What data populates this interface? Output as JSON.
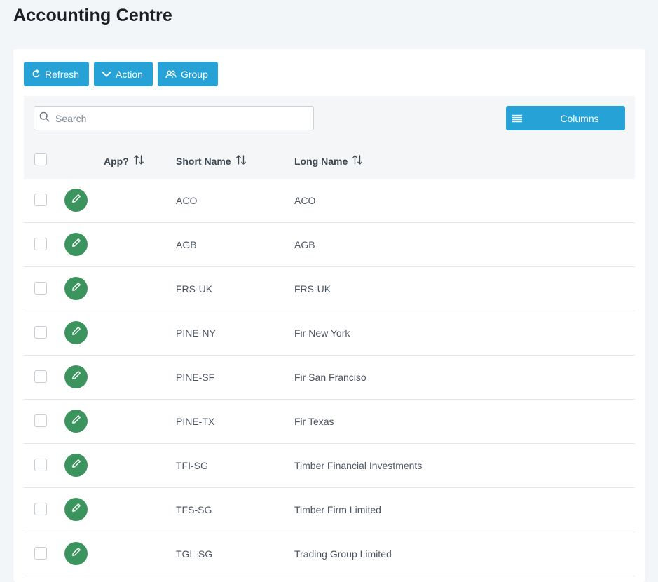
{
  "page": {
    "title": "Accounting Centre"
  },
  "toolbar": {
    "refresh_label": "Refresh",
    "action_label": "Action",
    "group_label": "Group"
  },
  "search": {
    "placeholder": "Search",
    "value": ""
  },
  "columns_button": {
    "label": "Columns"
  },
  "table": {
    "headers": {
      "app": "App?",
      "short_name": "Short Name",
      "long_name": "Long Name"
    },
    "rows": [
      {
        "short_name": "ACO",
        "long_name": "ACO"
      },
      {
        "short_name": "AGB",
        "long_name": "AGB"
      },
      {
        "short_name": "FRS-UK",
        "long_name": "FRS-UK"
      },
      {
        "short_name": "PINE-NY",
        "long_name": "Fir New York"
      },
      {
        "short_name": "PINE-SF",
        "long_name": "Fir San Franciso"
      },
      {
        "short_name": "PINE-TX",
        "long_name": "Fir Texas"
      },
      {
        "short_name": "TFI-SG",
        "long_name": "Timber Financial Investments"
      },
      {
        "short_name": "TFS-SG",
        "long_name": "Timber Firm Limited"
      },
      {
        "short_name": "TGL-SG",
        "long_name": "Trading Group Limited"
      }
    ]
  },
  "colors": {
    "primary_button": "#27a2d6",
    "edit_button": "#3b945e",
    "page_background": "#f3f6f9"
  },
  "icons": {
    "refresh": "refresh-icon",
    "action": "chevron-down-icon",
    "group": "group-users-icon",
    "search": "search-icon",
    "columns": "list-lines-icon",
    "sort": "sort-arrows-icon",
    "edit": "pencil-icon"
  }
}
